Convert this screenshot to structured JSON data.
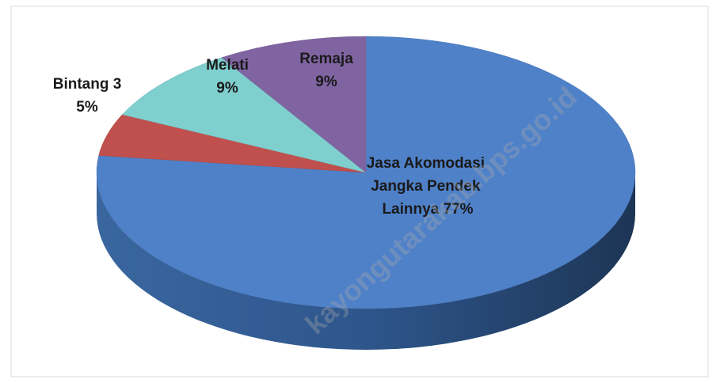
{
  "chart_data": {
    "type": "pie",
    "categories": [
      "Jasa Akomodasi Jangka Pendek Lainnya",
      "Bintang 3",
      "Melati",
      "Remaja"
    ],
    "values": [
      77,
      5,
      9,
      9
    ],
    "value_labels": [
      "77%",
      "5%",
      "9%",
      "9%"
    ],
    "colors": [
      "#4f81c9",
      "#c0504d",
      "#7fcfcf",
      "#8064a2"
    ],
    "watermark": "kayongutarakab.bps.go.id"
  }
}
